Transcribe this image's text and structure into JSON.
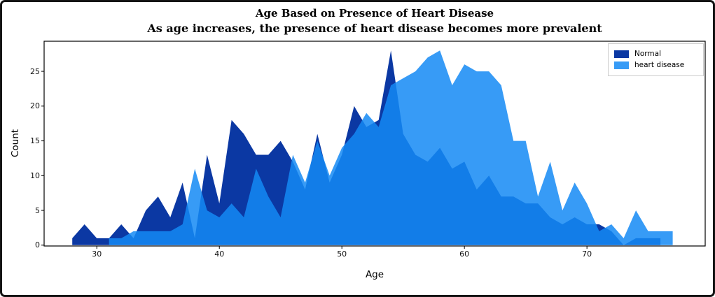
{
  "chart_data": {
    "type": "area",
    "title": "Age Based on Presence of Heart Disease",
    "subtitle": "As age increases, the presence of heart disease becomes more prevalent",
    "xlabel": "Age",
    "ylabel": "Count",
    "x_ticks": [
      30,
      40,
      50,
      60,
      70
    ],
    "y_ticks": [
      0,
      5,
      10,
      15,
      20,
      25
    ],
    "x_range": [
      25.7,
      79.65
    ],
    "y_range": [
      -0.12,
      29.33
    ],
    "grid": false,
    "legend": {
      "position": "upper right",
      "entries": [
        "Normal",
        "heart disease"
      ]
    },
    "series": [
      {
        "name": "Normal",
        "color": "#0b38a3",
        "fill_opacity": 1,
        "start_age": 28,
        "values": [
          1,
          3,
          1,
          1,
          3,
          1,
          5,
          7,
          4,
          9,
          1,
          13,
          6,
          18,
          16,
          13,
          13,
          15,
          12,
          8,
          16,
          9,
          13,
          20,
          17,
          18,
          28,
          16,
          13,
          12,
          14,
          11,
          12,
          8,
          10,
          7,
          7,
          6,
          6,
          4,
          3,
          4,
          3,
          3,
          2,
          0,
          1,
          1,
          1
        ]
      },
      {
        "name": "heart disease",
        "color": "#1489f5",
        "fill_opacity": 0.85,
        "start_age": 31,
        "values": [
          1,
          1,
          2,
          2,
          2,
          2,
          3,
          11,
          5,
          4,
          6,
          4,
          11,
          7,
          4,
          13,
          9,
          15,
          10,
          14,
          16,
          19,
          17,
          23,
          24,
          25,
          27,
          28,
          23,
          26,
          25,
          25,
          23,
          15,
          15,
          7,
          12,
          5,
          9,
          6,
          2,
          3,
          1,
          5,
          2,
          2,
          2
        ]
      }
    ]
  }
}
